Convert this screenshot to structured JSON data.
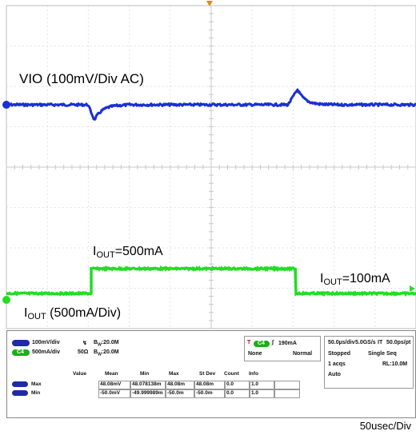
{
  "scope": {
    "grid": {
      "divisions_x": 10,
      "divisions_y": 8
    },
    "channels": {
      "vio": {
        "label": "VIO (100mV/Div  AC)",
        "color": "#1a2fd6"
      },
      "iout": {
        "label_prefix": "I",
        "label_sub": "OUT",
        "label_rest": " (500mA/Div)",
        "color": "#22dd22"
      }
    },
    "annotations": {
      "high": {
        "prefix": "I",
        "sub": "OUT",
        "rest": "=500mA"
      },
      "low": {
        "prefix": "I",
        "sub": "OUT",
        "rest": "=100mA"
      }
    },
    "timebase": "50usec/Div"
  },
  "panel": {
    "ch1": {
      "scale": "100mV/div",
      "coupling_icon": "ac-coupling-icon",
      "bw": "Bₑ:20.0M",
      "bw_pre": "B",
      "bw_sub": "W",
      "bw_val": ":20.0M"
    },
    "ch4": {
      "badge": "C4",
      "scale": "500mA/div",
      "imp": "50Ω",
      "bw_pre": "B",
      "bw_sub": "W",
      "bw_val": ":20.0M"
    },
    "trigger": {
      "badge": "C4",
      "level": "190mA",
      "mode1": "None",
      "mode2": "Normal"
    },
    "acq": {
      "timediv": "50.0µs/div",
      "rate": "5.0GS/s",
      "it": "IT",
      "pt": "50.0ps/pt",
      "status": "Stopped",
      "seq": "Single Seq",
      "acqs": "1 acqs",
      "rl": "RL:10.0M",
      "auto": "Auto"
    },
    "table": {
      "headers": [
        "Value",
        "Mean",
        "Min",
        "Max",
        "St Dev",
        "Count",
        "Info"
      ],
      "rows": [
        {
          "label": "Max",
          "cells": [
            "48.08mV",
            "48.078138m",
            "48.08m",
            "48.08m",
            "0.0",
            "1.0",
            ""
          ]
        },
        {
          "label": "Min",
          "cells": [
            "-50.0mV",
            "-49.999989m",
            "-50.0m",
            "-50.0m",
            "0.0",
            "1.0",
            ""
          ]
        }
      ]
    }
  }
}
